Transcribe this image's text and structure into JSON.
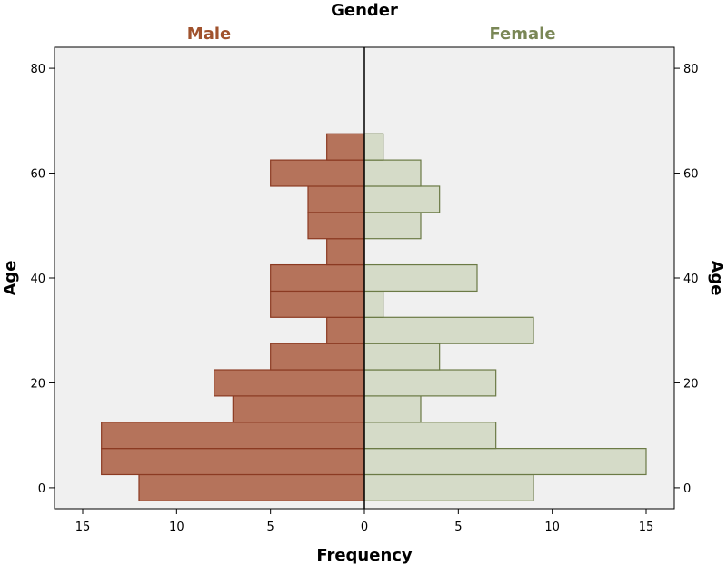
{
  "chart_data": {
    "type": "bar",
    "title": "Gender",
    "xlabel": "Frequency",
    "ylabel": "Age",
    "ylim": [
      -4,
      84
    ],
    "xlim": [
      -16.5,
      16.5
    ],
    "grid": false,
    "age_ticks": [
      0,
      20,
      40,
      60,
      80
    ],
    "age_tick_labels": [
      "0",
      "20",
      "40",
      "60",
      "80"
    ],
    "freq_ticks": [
      -15,
      -10,
      -5,
      0,
      5,
      10,
      15
    ],
    "freq_tick_labels": [
      "15",
      "10",
      "5",
      "0",
      "5",
      "10",
      "15"
    ],
    "bin_width": 5,
    "age_bins": [
      0,
      5,
      10,
      15,
      20,
      25,
      30,
      35,
      40,
      45,
      50,
      55,
      60,
      65
    ],
    "series": [
      {
        "name": "Male",
        "side": "left",
        "color": "#b5735b",
        "stroke": "#8b3a22",
        "label_color": "#a0522d",
        "values": [
          12,
          14,
          14,
          7,
          8,
          5,
          2,
          5,
          5,
          2,
          3,
          3,
          5,
          2
        ]
      },
      {
        "name": "Female",
        "side": "right",
        "color": "#d5dbc8",
        "stroke": "#6b7a45",
        "label_color": "#7a8756",
        "values": [
          9,
          15,
          7,
          3,
          7,
          4,
          9,
          1,
          6,
          0,
          3,
          4,
          3,
          1
        ]
      }
    ]
  }
}
